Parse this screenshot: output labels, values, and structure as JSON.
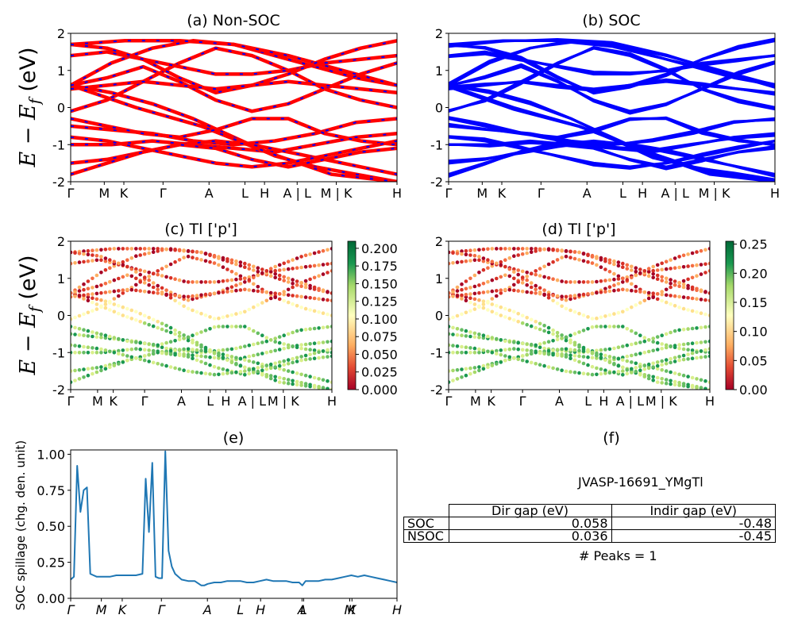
{
  "figure": {
    "ylabel_bands": "E − E_f (eV)",
    "ylabel_spill": "SOC spillage (chg. den. unit)",
    "kpath": [
      "Γ",
      "M",
      "K",
      "Γ",
      "A",
      "L",
      "H",
      "A | L",
      "M | K",
      "H"
    ],
    "kpath_italic": [
      "Γ",
      "M",
      "K",
      "Γ",
      "A",
      "L",
      "H",
      "A",
      "L",
      "M",
      "K",
      "H"
    ]
  },
  "panels": {
    "a": {
      "title": "(a) Non-SOC"
    },
    "b": {
      "title": "(b) SOC"
    },
    "c": {
      "title": "(c)  Tl ['p']",
      "cbar_ticks": [
        "0.000",
        "0.025",
        "0.050",
        "0.075",
        "0.100",
        "0.125",
        "0.150",
        "0.175",
        "0.200"
      ]
    },
    "d": {
      "title": "(d) Tl ['p']",
      "cbar_ticks": [
        "0.00",
        "0.05",
        "0.10",
        "0.15",
        "0.20",
        "0.25"
      ]
    },
    "e": {
      "title": "(e)"
    },
    "f": {
      "title": "(f)",
      "material": "JVASP-16691_YMgTl",
      "col_headers": [
        "Dir gap (eV)",
        "Indir gap (eV)"
      ],
      "rows": [
        {
          "label": "SOC",
          "dir": "0.058",
          "indir": "-0.48"
        },
        {
          "label": "NSOC",
          "dir": "0.036",
          "indir": "-0.45"
        }
      ],
      "peaks": "# Peaks = 1"
    }
  },
  "colors": {
    "nonsoc_red": "#ff0000",
    "nonsoc_blue": "#0000ff",
    "soc_blue": "#0000ff",
    "spillage_line": "#1f77b4"
  },
  "chart_data": [
    {
      "type": "line",
      "title": "(a) Non-SOC",
      "ylabel": "E − E_f (eV)",
      "ylim": [
        -2,
        2
      ],
      "yticks": [
        -2,
        -1,
        0,
        1,
        2
      ],
      "xticks": [
        "Γ",
        "M",
        "K",
        "Γ",
        "A",
        "L",
        "H",
        "A | L",
        "M | K",
        "H"
      ],
      "series": [
        {
          "values": [
            0.6,
            0.4,
            0.1,
            -0.3,
            -0.8,
            -1.3,
            -1.6,
            -1.8,
            -2.0
          ]
        },
        {
          "values": [
            0.6,
            1.2,
            1.6,
            1.8,
            1.7,
            1.4,
            1.1,
            0.8,
            0.6
          ]
        },
        {
          "values": [
            -0.5,
            -0.6,
            -0.7,
            -0.9,
            -1.0,
            -0.9,
            -0.7,
            -0.4,
            -0.3
          ]
        },
        {
          "values": [
            -1.0,
            -1.0,
            -0.9,
            -1.0,
            -1.1,
            -1.2,
            -1.0,
            -0.8,
            -0.7
          ]
        },
        {
          "values": [
            0.6,
            0.0,
            -0.5,
            -1.2,
            -1.8,
            -2.0
          ]
        },
        {
          "values": [
            1.7,
            1.8,
            1.8,
            1.7,
            1.4,
            1.0,
            0.6
          ]
        },
        {
          "values": [
            0.6,
            0.8,
            1.1,
            0.7,
            0.2,
            -0.1,
            0.1,
            0.5,
            0.9,
            1.2
          ]
        },
        {
          "values": [
            -0.3,
            -0.5,
            -0.7,
            -0.8,
            -0.6,
            -0.3,
            -0.3,
            -0.7,
            -0.9,
            -1.0
          ]
        },
        {
          "values": [
            -1.5,
            -1.4,
            -1.2,
            -1.0,
            -0.9,
            -1.0,
            -1.2,
            -1.4,
            -1.6,
            -1.8
          ]
        },
        {
          "values": [
            -0.1,
            0.2,
            0.7,
            1.2,
            1.6,
            1.4,
            1.0,
            0.5,
            0.2,
            0.0
          ]
        },
        {
          "values": [
            1.4,
            1.5,
            1.3,
            1.1,
            0.9,
            0.9,
            1.0,
            1.2,
            1.3,
            1.4
          ]
        },
        {
          "values": [
            -1.8,
            -1.5,
            -1.2,
            -1.0,
            -1.1,
            -1.4,
            -1.6,
            -1.4,
            -1.2,
            -1.1
          ]
        },
        {
          "values": [
            1.7,
            1.6,
            1.3,
            0.8,
            0.4,
            0.6,
            0.9,
            1.3,
            1.6,
            1.8
          ]
        },
        {
          "values": [
            -0.8,
            -0.9,
            -1.1,
            -1.3,
            -1.5,
            -1.6,
            -1.5,
            -1.3,
            -1.1,
            -0.9
          ]
        },
        {
          "values": [
            0.5,
            0.6,
            0.7,
            0.6,
            0.5,
            0.6,
            0.7,
            0.6,
            0.5,
            0.4
          ]
        }
      ]
    },
    {
      "type": "line",
      "title": "(b) SOC",
      "ylim": [
        -2,
        2
      ],
      "yticks": [
        -2,
        -1,
        0,
        1,
        2
      ],
      "xticks": [
        "Γ",
        "M",
        "K",
        "Γ",
        "A",
        "L",
        "H",
        "A | L",
        "M | K",
        "H"
      ],
      "series": [
        {
          "values": [
            0.6,
            0.4,
            0.1,
            -0.3,
            -0.8,
            -1.3,
            -1.6,
            -1.8,
            -2.0
          ]
        },
        {
          "values": [
            0.6,
            1.2,
            1.6,
            1.8,
            1.7,
            1.4,
            1.1,
            0.8,
            0.6
          ]
        },
        {
          "values": [
            -0.5,
            -0.6,
            -0.7,
            -0.9,
            -1.0,
            -0.9,
            -0.7,
            -0.4,
            -0.3
          ]
        },
        {
          "values": [
            -1.0,
            -1.0,
            -0.9,
            -1.0,
            -1.1,
            -1.2,
            -1.0,
            -0.8,
            -0.7
          ]
        },
        {
          "values": [
            0.6,
            0.0,
            -0.5,
            -1.2,
            -1.8,
            -2.0
          ]
        },
        {
          "values": [
            1.7,
            1.8,
            1.8,
            1.7,
            1.4,
            1.0,
            0.6
          ]
        },
        {
          "values": [
            0.6,
            0.8,
            1.1,
            0.7,
            0.2,
            -0.1,
            0.1,
            0.5,
            0.9,
            1.2
          ]
        },
        {
          "values": [
            -0.3,
            -0.5,
            -0.7,
            -0.8,
            -0.6,
            -0.3,
            -0.3,
            -0.7,
            -0.9,
            -1.0
          ]
        },
        {
          "values": [
            -1.5,
            -1.4,
            -1.2,
            -1.0,
            -0.9,
            -1.0,
            -1.2,
            -1.4,
            -1.6,
            -1.8
          ]
        },
        {
          "values": [
            -0.1,
            0.2,
            0.7,
            1.2,
            1.6,
            1.4,
            1.0,
            0.5,
            0.2,
            0.0
          ]
        },
        {
          "values": [
            1.4,
            1.5,
            1.3,
            1.1,
            0.9,
            0.9,
            1.0,
            1.2,
            1.3,
            1.4
          ]
        },
        {
          "values": [
            -1.8,
            -1.5,
            -1.2,
            -1.0,
            -1.1,
            -1.4,
            -1.6,
            -1.4,
            -1.2,
            -1.1
          ]
        },
        {
          "values": [
            1.7,
            1.6,
            1.3,
            0.8,
            0.4,
            0.6,
            0.9,
            1.3,
            1.6,
            1.8
          ]
        },
        {
          "values": [
            -0.8,
            -0.9,
            -1.1,
            -1.3,
            -1.5,
            -1.6,
            -1.5,
            -1.3,
            -1.1,
            -0.9
          ]
        },
        {
          "values": [
            0.5,
            0.6,
            0.7,
            0.6,
            0.5,
            0.6,
            0.7,
            0.6,
            0.5,
            0.4
          ]
        }
      ]
    },
    {
      "type": "scatter",
      "title": "(c)  Tl ['p']",
      "ylim": [
        -2,
        2
      ],
      "colorbar_range": [
        0,
        0.21
      ],
      "yticks": [
        -2,
        -1,
        0,
        1,
        2
      ],
      "xticks": [
        "Γ",
        "M",
        "K",
        "Γ",
        "A",
        "L",
        "H",
        "A | L",
        "M | K",
        "H"
      ]
    },
    {
      "type": "scatter",
      "title": "(d) Tl ['p']",
      "ylim": [
        -2,
        2
      ],
      "colorbar_range": [
        0,
        0.25
      ],
      "yticks": [
        -2,
        -1,
        0,
        1,
        2
      ],
      "xticks": [
        "Γ",
        "M",
        "K",
        "Γ",
        "A",
        "L",
        "H",
        "A | L",
        "M | K",
        "H"
      ]
    },
    {
      "type": "line",
      "title": "(e)",
      "ylabel": "SOC spillage (chg. den. unit)",
      "ylim": [
        0,
        1.03
      ],
      "yticks": [
        "0.00",
        "0.25",
        "0.50",
        "0.75",
        "1.00"
      ],
      "xticks": [
        "Γ",
        "M",
        "K",
        "Γ",
        "A",
        "L",
        "H",
        "A",
        "L",
        "M",
        "K",
        "H"
      ],
      "x": [
        0,
        0.01,
        0.02,
        0.03,
        0.04,
        0.05,
        0.06,
        0.07,
        0.08,
        0.1,
        0.12,
        0.14,
        0.16,
        0.18,
        0.2,
        0.22,
        0.23,
        0.24,
        0.25,
        0.26,
        0.27,
        0.28,
        0.29,
        0.3,
        0.31,
        0.32,
        0.33,
        0.34,
        0.36,
        0.38,
        0.4,
        0.41,
        0.42,
        0.44,
        0.46,
        0.48,
        0.5,
        0.52,
        0.54,
        0.56,
        0.58,
        0.6,
        0.62,
        0.64,
        0.66,
        0.68,
        0.7,
        0.71,
        0.72,
        0.74,
        0.76,
        0.78,
        0.8,
        0.82,
        0.84,
        0.86,
        0.88,
        0.9,
        0.92,
        0.94,
        0.96,
        0.98,
        1.0
      ],
      "values": [
        0.13,
        0.15,
        0.92,
        0.6,
        0.75,
        0.77,
        0.17,
        0.16,
        0.15,
        0.15,
        0.15,
        0.16,
        0.16,
        0.16,
        0.16,
        0.17,
        0.83,
        0.46,
        0.94,
        0.15,
        0.14,
        0.14,
        1.02,
        0.33,
        0.22,
        0.17,
        0.15,
        0.13,
        0.12,
        0.12,
        0.09,
        0.09,
        0.1,
        0.11,
        0.11,
        0.12,
        0.12,
        0.12,
        0.11,
        0.11,
        0.12,
        0.13,
        0.12,
        0.12,
        0.12,
        0.11,
        0.11,
        0.09,
        0.12,
        0.12,
        0.12,
        0.13,
        0.13,
        0.14,
        0.15,
        0.16,
        0.15,
        0.16,
        0.15,
        0.14,
        0.13,
        0.12,
        0.11
      ]
    }
  ]
}
